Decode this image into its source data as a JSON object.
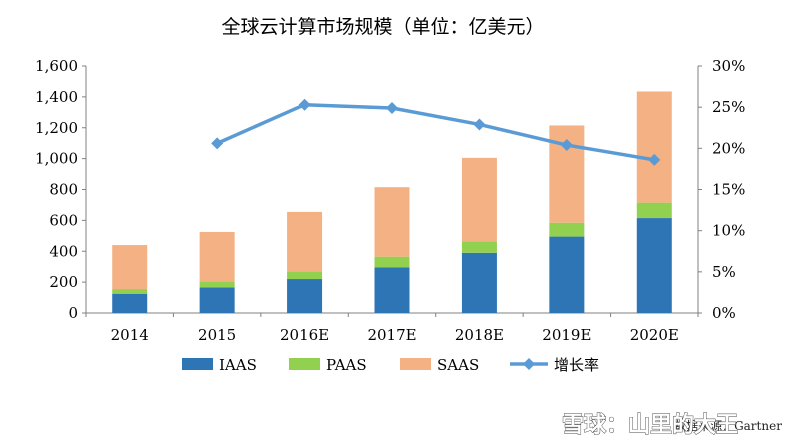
{
  "chart_data": {
    "type": "bar",
    "stacked": true,
    "title": "全球云计算市场规模（单位：亿美元）",
    "categories": [
      "2014",
      "2015",
      "2016E",
      "2017E",
      "2018E",
      "2019E",
      "2020E"
    ],
    "series": [
      {
        "name": "IAAS",
        "color": "#2E75B6",
        "values": [
          125,
          165,
          220,
          295,
          390,
          495,
          615
        ]
      },
      {
        "name": "PAAS",
        "color": "#92D050",
        "values": [
          30,
          40,
          50,
          70,
          75,
          90,
          100
        ]
      },
      {
        "name": "SAAS",
        "color": "#F4B183",
        "values": [
          285,
          320,
          385,
          450,
          540,
          630,
          720
        ]
      }
    ],
    "line_series": {
      "name": "增长率",
      "color": "#5B9BD5",
      "axis": "right",
      "values": [
        null,
        20.6,
        25.3,
        24.9,
        22.9,
        20.4,
        18.6
      ]
    },
    "ylim": [
      0,
      1600
    ],
    "yticks": [
      "0",
      "200",
      "400",
      "600",
      "800",
      "1,000",
      "1,200",
      "1,400",
      "1,600"
    ],
    "y2lim": [
      0,
      30
    ],
    "y2ticks": [
      "0%",
      "5%",
      "10%",
      "15%",
      "20%",
      "25%",
      "30%"
    ],
    "grid": false,
    "legend_position": "bottom"
  },
  "source_text": "数据来源：Gartner",
  "watermark": "雪球：山里的大王"
}
